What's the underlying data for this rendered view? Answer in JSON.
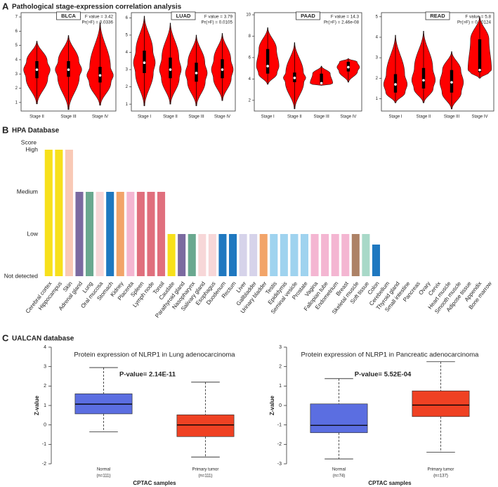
{
  "panels": [
    {
      "label": "A",
      "title": "Pathological stage-expression correlation analysis"
    },
    {
      "label": "B",
      "title": "HPA Database"
    },
    {
      "label": "C",
      "title": "UALCAN database"
    }
  ],
  "chart_data": [
    {
      "type": "violin",
      "title": "BLCA",
      "annotations": [
        "F value = 3.42",
        "Pr(>F) = 0.0336"
      ],
      "categories": [
        "Stage II",
        "Stage III",
        "Stage IV"
      ],
      "min": [
        0.9,
        0.5,
        0.8
      ],
      "q1": [
        2.7,
        2.8,
        2.4
      ],
      "median": [
        3.3,
        3.3,
        2.9
      ],
      "q3": [
        3.9,
        3.9,
        3.5
      ],
      "max": [
        5.3,
        5.7,
        6.6
      ],
      "color": "#ff0000",
      "ylim": [
        0.4,
        7.3
      ],
      "yticks": [
        1,
        2,
        3,
        4,
        5,
        6,
        7
      ]
    },
    {
      "type": "violin",
      "title": "LUAD",
      "annotations": [
        "F value = 3.79",
        "Pr(>F) = 0.0105"
      ],
      "categories": [
        "Stage I",
        "Stage II",
        "Stage III",
        "Stage IV"
      ],
      "min": [
        0.9,
        1.0,
        0.9,
        1.2
      ],
      "q1": [
        2.8,
        2.5,
        2.3,
        2.5
      ],
      "median": [
        3.4,
        3.0,
        2.8,
        3.0
      ],
      "q3": [
        4.1,
        3.7,
        3.4,
        3.6
      ],
      "max": [
        6.1,
        5.7,
        5.0,
        5.1
      ],
      "color": "#ff0000",
      "ylim": [
        0.6,
        6.3
      ],
      "yticks": [
        1,
        2,
        3,
        4,
        5,
        6
      ]
    },
    {
      "type": "violin",
      "title": "PAAD",
      "annotations": [
        "F value = 14.3",
        "Pr(>F) = 2.46e-08"
      ],
      "categories": [
        "Stage I",
        "Stage II",
        "Stage III",
        "Stage IV"
      ],
      "min": [
        3.5,
        1.2,
        3.4,
        3.7
      ],
      "q1": [
        4.5,
        3.7,
        3.5,
        4.7
      ],
      "median": [
        5.2,
        4.1,
        3.6,
        5.1
      ],
      "q3": [
        6.8,
        4.6,
        4.5,
        5.6
      ],
      "max": [
        8.8,
        7.4,
        5.2,
        5.9
      ],
      "color": "#ff0000",
      "ylim": [
        1.0,
        10.2
      ],
      "yticks": [
        2,
        4,
        6,
        8,
        10
      ]
    },
    {
      "type": "violin",
      "title": "READ",
      "annotations": [
        "F value = 5.8",
        "Pr(>F) = 0.00124"
      ],
      "categories": [
        "Stage I",
        "Stage II",
        "Stage III",
        "Stage IV"
      ],
      "min": [
        0.8,
        0.8,
        0.5,
        2.0
      ],
      "q1": [
        1.3,
        1.5,
        1.3,
        2.3
      ],
      "median": [
        1.7,
        1.9,
        1.8,
        2.4
      ],
      "q3": [
        2.2,
        2.5,
        2.4,
        3.9
      ],
      "max": [
        4.1,
        4.3,
        3.3,
        5.0
      ],
      "color": "#ff0000",
      "ylim": [
        0.4,
        5.2
      ],
      "yticks": [
        1,
        2,
        3,
        4,
        5
      ]
    },
    {
      "type": "bar",
      "ylabel": "Score",
      "categories": [
        "Cerebral cortex",
        "Hippocampus",
        "Skin",
        "Adrenal gland",
        "Lung",
        "Oral mucosa",
        "Stomach",
        "Kidney",
        "Placenta",
        "Spleen",
        "Lymph node",
        "Tonsil",
        "Caudate",
        "Parathyroid gland",
        "Nasopharynx",
        "Salivary gland",
        "Esophagus",
        "Duodenum",
        "Rectum",
        "Liver",
        "Gallbladder",
        "Urinary bladder",
        "Testis",
        "Epididymis",
        "Seminal vesicle",
        "Prostate",
        "Vagina",
        "Fallopian tube",
        "Endometrium",
        "Breast",
        "Skeletal muscle",
        "Soft tissue",
        "Colon",
        "Cerebellum",
        "Thyroid gland",
        "Small intestine",
        "Pancreas",
        "Ovary",
        "Cervix",
        "Heart muscle",
        "Smooth muscle",
        "Adipose tissue",
        "Appendix",
        "Bone marrow"
      ],
      "values": [
        3,
        3,
        3,
        2,
        2,
        2,
        2,
        2,
        2,
        2,
        2,
        2,
        1,
        1,
        1,
        1,
        1,
        1,
        1,
        1,
        1,
        1,
        1,
        1,
        1,
        1,
        1,
        1,
        1,
        1,
        1,
        1,
        0.75,
        0,
        0,
        0,
        0,
        0,
        0,
        0,
        0,
        0,
        0,
        0
      ],
      "colors": [
        "#f7e01b",
        "#f7e01b",
        "#f9c9b6",
        "#7b6aa0",
        "#6aa88f",
        "#f7d7d8",
        "#1f78c0",
        "#f2a469",
        "#f4b6d2",
        "#e06f7d",
        "#e06f7d",
        "#e06f7d",
        "#f7e01b",
        "#7b6aa0",
        "#6aa88f",
        "#f7d7d8",
        "#f7d7d8",
        "#1f78c0",
        "#1f78c0",
        "#d6d3ea",
        "#d6d3ea",
        "#f2a469",
        "#9fd3ef",
        "#9fd3ef",
        "#9fd3ef",
        "#9fd3ef",
        "#f4b6d2",
        "#f4b6d2",
        "#f4b6d2",
        "#f4b6d2",
        "#ad8266",
        "#a8d9c8",
        "#1f78c0",
        "#1f78c0",
        "#1f78c0",
        "#1f78c0",
        "#1f78c0",
        "#1f78c0",
        "#1f78c0",
        "#1f78c0",
        "#1f78c0",
        "#1f78c0",
        "#1f78c0",
        "#1f78c0"
      ],
      "ylim": [
        0,
        3
      ],
      "yticks": [
        {
          "value": 0,
          "label": "Not detected"
        },
        {
          "value": 1,
          "label": "Low"
        },
        {
          "value": 2,
          "label": "Medium"
        },
        {
          "value": 3,
          "label": "High"
        }
      ]
    },
    {
      "type": "box",
      "title": "Protein expression of NLRP1 in Lung adenocarcinoma",
      "annotation": "P-value= 2.14E-11",
      "categories": [
        "Normal",
        "Primary tumor"
      ],
      "n_labels": [
        "(n=111)",
        "(n=111)"
      ],
      "xlabel": "CPTAC samples",
      "ylabel": "Z-value",
      "min": [
        -0.35,
        -1.65
      ],
      "q1": [
        0.57,
        -0.6
      ],
      "median": [
        1.07,
        0
      ],
      "q3": [
        1.6,
        0.52
      ],
      "max": [
        2.95,
        2.2
      ],
      "colors": [
        "#5b6ee1",
        "#ef4123"
      ],
      "ylim": [
        -2,
        4
      ],
      "yticks": [
        -2,
        -1,
        0,
        1,
        2,
        3,
        4
      ]
    },
    {
      "type": "box",
      "title": "Protein expression of NLRP1 in Pancreatic adenocarcinoma",
      "annotation": "P-value= 5.52E-04",
      "categories": [
        "Normal",
        "Primary tumor"
      ],
      "n_labels": [
        "(n=74)",
        "(n=137)"
      ],
      "xlabel": "CPTAC samples",
      "ylabel": "Z-value",
      "min": [
        -2.75,
        -2.4
      ],
      "q1": [
        -1.4,
        -0.57
      ],
      "median": [
        -1.02,
        0.02
      ],
      "q3": [
        0.08,
        0.75
      ],
      "max": [
        1.38,
        2.25
      ],
      "colors": [
        "#5b6ee1",
        "#ef4123"
      ],
      "ylim": [
        -3,
        3
      ],
      "yticks": [
        -3,
        -2,
        -1,
        0,
        1,
        2,
        3
      ]
    }
  ]
}
